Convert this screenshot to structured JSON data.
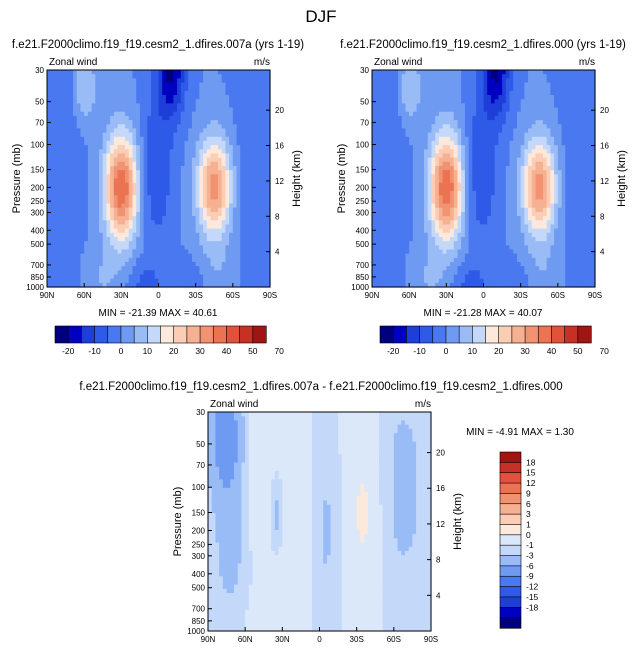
{
  "figure": {
    "title": "DJF"
  },
  "colors": {
    "main": [
      "#00007f",
      "#0000c0",
      "#1d3fd8",
      "#2f5ae8",
      "#4a78f0",
      "#6f9af2",
      "#99bcf7",
      "#c4d9fa",
      "#fde9dc",
      "#fbcdb4",
      "#f6b092",
      "#f19270",
      "#eb7352",
      "#e0533a",
      "#c73024",
      "#9e1511"
    ],
    "diff": [
      "#00007f",
      "#0000c0",
      "#1d3fd8",
      "#2f5ae8",
      "#4a78f0",
      "#6f9af2",
      "#99bcf7",
      "#c4d9fa",
      "#dbe8fa",
      "#fde9dc",
      "#fbcdb4",
      "#f6b092",
      "#f19270",
      "#eb7352",
      "#e0533a",
      "#c73024",
      "#9e1511"
    ]
  },
  "chart_data": [
    {
      "type": "heatmap",
      "panel": "a",
      "title": "f.e21.F2000climo.f19_f19.cesm2_1.dfires.007a (yrs 1-19)",
      "left_string": "Zonal wind",
      "right_string": "m/s",
      "ylabel": "Pressure (mb)",
      "ylabel_right": "Height (km)",
      "x_ticks": [
        "90N",
        "60N",
        "30N",
        "0",
        "30S",
        "60S",
        "90S"
      ],
      "y_ticks": [
        "30",
        "50",
        "70",
        "100",
        "150",
        "200",
        "250",
        "300",
        "400",
        "500",
        "700",
        "850",
        "1000"
      ],
      "y_ticks_right": [
        "20",
        "16",
        "12",
        "8",
        "4"
      ],
      "x_range": [
        90,
        -90
      ],
      "y_range_mb": [
        1000,
        30
      ],
      "y_scale": "log",
      "stats": "MIN = -21.39   MAX = 40.61",
      "min": -21.39,
      "max": 40.61,
      "colorbar": {
        "orientation": "horizontal",
        "labels": [
          "-20",
          "-10",
          "0",
          "10",
          "20",
          "30",
          "40",
          "50",
          "70"
        ]
      }
    },
    {
      "type": "heatmap",
      "panel": "b",
      "title": "f.e21.F2000climo.f19_f19.cesm2_1.dfires.000 (yrs 1-19)",
      "left_string": "Zonal wind",
      "right_string": "m/s",
      "ylabel": "Pressure (mb)",
      "ylabel_right": "Height (km)",
      "x_ticks": [
        "90N",
        "60N",
        "30N",
        "0",
        "30S",
        "60S",
        "90S"
      ],
      "y_ticks": [
        "30",
        "50",
        "70",
        "100",
        "150",
        "200",
        "250",
        "300",
        "400",
        "500",
        "700",
        "850",
        "1000"
      ],
      "y_ticks_right": [
        "20",
        "16",
        "12",
        "8",
        "4"
      ],
      "x_range": [
        90,
        -90
      ],
      "y_range_mb": [
        1000,
        30
      ],
      "y_scale": "log",
      "stats": "MIN = -21.28   MAX = 40.07",
      "min": -21.28,
      "max": 40.07,
      "colorbar": {
        "orientation": "horizontal",
        "labels": [
          "-20",
          "-10",
          "0",
          "10",
          "20",
          "30",
          "40",
          "50",
          "70"
        ]
      }
    },
    {
      "type": "heatmap",
      "panel": "diff",
      "title": "f.e21.F2000climo.f19_f19.cesm2_1.dfires.007a - f.e21.F2000climo.f19_f19.cesm2_1.dfires.000",
      "left_string": "Zonal wind",
      "right_string": "m/s",
      "ylabel": "Pressure (mb)",
      "ylabel_right": "Height (km)",
      "x_ticks": [
        "90N",
        "60N",
        "30N",
        "0",
        "30S",
        "60S",
        "90S"
      ],
      "y_ticks": [
        "30",
        "50",
        "70",
        "100",
        "150",
        "200",
        "250",
        "300",
        "400",
        "500",
        "700",
        "850",
        "1000"
      ],
      "y_ticks_right": [
        "20",
        "16",
        "12",
        "8",
        "4"
      ],
      "x_range": [
        90,
        -90
      ],
      "y_range_mb": [
        1000,
        30
      ],
      "y_scale": "log",
      "stats": "MIN =  -4.91  MAX =   1.30",
      "min": -4.91,
      "max": 1.3,
      "colorbar": {
        "orientation": "vertical",
        "labels": [
          "18",
          "15",
          "12",
          "9",
          "6",
          "3",
          "1",
          "0",
          "-1",
          "-3",
          "-6",
          "-9",
          "-12",
          "-15",
          "-18"
        ]
      }
    }
  ]
}
